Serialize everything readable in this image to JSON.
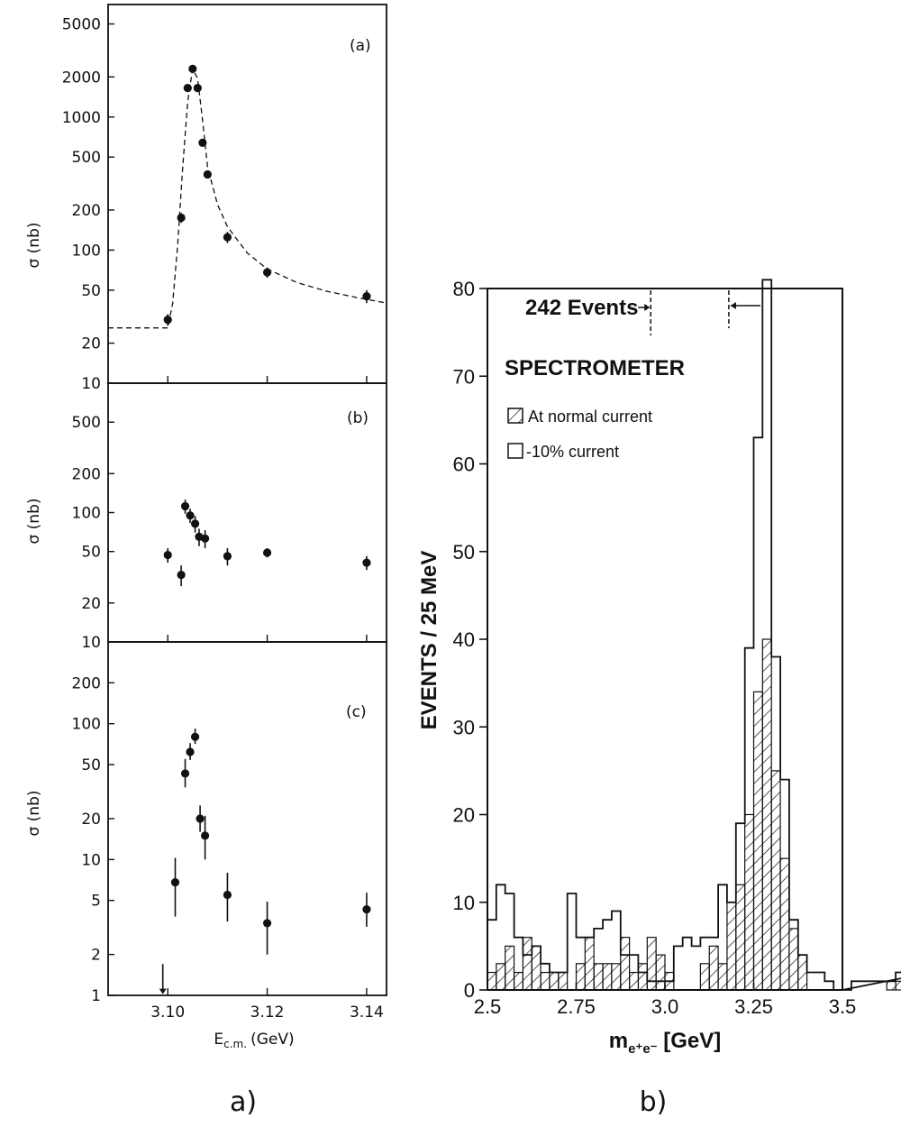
{
  "figure": {
    "caption_a": "a)",
    "caption_b": "b)"
  },
  "chart_data": [
    {
      "type": "scatter",
      "panel_label": "(a)",
      "ylabel": "σ (nb)",
      "y_scale": "log",
      "ylim": [
        10,
        7000
      ],
      "xlim": [
        3.088,
        3.144
      ],
      "yticks": [
        "10",
        "20",
        "50",
        "100",
        "200",
        "500",
        "1000",
        "2000",
        "5000"
      ],
      "points": [
        {
          "x": 3.1,
          "y": 30,
          "err": 3
        },
        {
          "x": 3.1027,
          "y": 175,
          "err": 15
        },
        {
          "x": 3.104,
          "y": 1650,
          "err": 100
        },
        {
          "x": 3.105,
          "y": 2300,
          "err": 130
        },
        {
          "x": 3.106,
          "y": 1650,
          "err": 100
        },
        {
          "x": 3.107,
          "y": 640,
          "err": 40
        },
        {
          "x": 3.108,
          "y": 370,
          "err": 25
        },
        {
          "x": 3.112,
          "y": 125,
          "err": 12
        },
        {
          "x": 3.12,
          "y": 68,
          "err": 6
        },
        {
          "x": 3.14,
          "y": 45,
          "err": 5
        }
      ],
      "fit_curve": [
        [
          3.088,
          26
        ],
        [
          3.098,
          26
        ],
        [
          3.1,
          26
        ],
        [
          3.101,
          40
        ],
        [
          3.102,
          110
        ],
        [
          3.103,
          420
        ],
        [
          3.104,
          1300
        ],
        [
          3.105,
          2300
        ],
        [
          3.106,
          1950
        ],
        [
          3.107,
          950
        ],
        [
          3.108,
          420
        ],
        [
          3.11,
          220
        ],
        [
          3.112,
          150
        ],
        [
          3.116,
          95
        ],
        [
          3.12,
          72
        ],
        [
          3.126,
          57
        ],
        [
          3.132,
          49
        ],
        [
          3.138,
          44
        ],
        [
          3.144,
          40
        ]
      ]
    },
    {
      "type": "scatter",
      "panel_label": "(b)",
      "ylabel": "σ (nb)",
      "y_scale": "log",
      "ylim": [
        10,
        1000
      ],
      "xlim": [
        3.088,
        3.144
      ],
      "yticks": [
        "10",
        "20",
        "50",
        "100",
        "200",
        "500"
      ],
      "points": [
        {
          "x": 3.1,
          "y": 47,
          "err": 6
        },
        {
          "x": 3.1027,
          "y": 33,
          "err": 6
        },
        {
          "x": 3.1035,
          "y": 112,
          "err": 14
        },
        {
          "x": 3.1045,
          "y": 95,
          "err": 12
        },
        {
          "x": 3.1055,
          "y": 82,
          "err": 12
        },
        {
          "x": 3.1063,
          "y": 65,
          "err": 10
        },
        {
          "x": 3.1075,
          "y": 63,
          "err": 10
        },
        {
          "x": 3.112,
          "y": 46,
          "err": 7
        },
        {
          "x": 3.12,
          "y": 49,
          "err": 4
        },
        {
          "x": 3.14,
          "y": 41,
          "err": 5
        }
      ]
    },
    {
      "type": "scatter",
      "panel_label": "(c)",
      "ylabel": "σ (nb)",
      "xlabel": "E",
      "xlabel_sub": "c.m.",
      "xlabel_unit": "(GeV)",
      "y_scale": "log",
      "ylim": [
        1,
        400
      ],
      "xlim": [
        3.088,
        3.144
      ],
      "yticks": [
        "1",
        "2",
        "5",
        "10",
        "20",
        "50",
        "100",
        "200"
      ],
      "xticks": [
        "3.10",
        "3.12",
        "3.14"
      ],
      "points": [
        {
          "x": 3.1015,
          "y": 6.8,
          "err_lo": 3.0,
          "err_hi": 3.5
        },
        {
          "x": 3.1035,
          "y": 43,
          "err_lo": 9,
          "err_hi": 12
        },
        {
          "x": 3.1045,
          "y": 62,
          "err_lo": 8,
          "err_hi": 10
        },
        {
          "x": 3.1055,
          "y": 80,
          "err_lo": 9,
          "err_hi": 12
        },
        {
          "x": 3.1065,
          "y": 20,
          "err_lo": 4,
          "err_hi": 5
        },
        {
          "x": 3.1075,
          "y": 15,
          "err_lo": 5,
          "err_hi": 6
        },
        {
          "x": 3.112,
          "y": 5.5,
          "err_lo": 2.0,
          "err_hi": 2.5
        },
        {
          "x": 3.12,
          "y": 3.4,
          "err_lo": 1.4,
          "err_hi": 1.5
        },
        {
          "x": 3.14,
          "y": 4.3,
          "err_lo": 1.1,
          "err_hi": 1.4
        }
      ],
      "upper_limit_arrow_x": 3.099
    },
    {
      "type": "bar",
      "title": "SPECTROMETER",
      "annotation": "242 Events",
      "xlabel_main": "m",
      "xlabel_sub": "e⁺e⁻",
      "xlabel_rest": " [GeV]",
      "ylabel": "EVENTS / 25 MeV",
      "xlim": [
        2.5,
        3.5
      ],
      "ylim": [
        0,
        80
      ],
      "xticks": [
        "2.5",
        "2.75",
        "3.0",
        "3.25",
        "3.5"
      ],
      "yticks": [
        "0",
        "10",
        "20",
        "30",
        "40",
        "50",
        "60",
        "70",
        "80"
      ],
      "bin_width_gev": 0.025,
      "annotation_bracket_gev": [
        2.96,
        3.18
      ],
      "legend": [
        {
          "name": "At normal current",
          "pattern": "hatched"
        },
        {
          "name": "-10% current",
          "pattern": "open"
        }
      ],
      "series": [
        {
          "name": "At normal current",
          "values": [
            2,
            3,
            5,
            2,
            6,
            5,
            2,
            2,
            2,
            0,
            3,
            6,
            3,
            3,
            3,
            6,
            2,
            3,
            6,
            4,
            2,
            0,
            0,
            0,
            3,
            5,
            3,
            10,
            12,
            20,
            34,
            40,
            25,
            15,
            7,
            4,
            0,
            0,
            0,
            0,
            0,
            0,
            0,
            0,
            0,
            1,
            1,
            1,
            0,
            0
          ]
        },
        {
          "name": "-10% current",
          "values": [
            8,
            12,
            11,
            6,
            4,
            5,
            3,
            2,
            2,
            11,
            6,
            6,
            7,
            8,
            9,
            4,
            4,
            2,
            1,
            1,
            1,
            5,
            6,
            5,
            6,
            6,
            12,
            10,
            19,
            39,
            63,
            81,
            38,
            24,
            8,
            4,
            2,
            2,
            1,
            0,
            0,
            1,
            1,
            1,
            1,
            1,
            2,
            1,
            1,
            2
          ]
        }
      ]
    }
  ]
}
